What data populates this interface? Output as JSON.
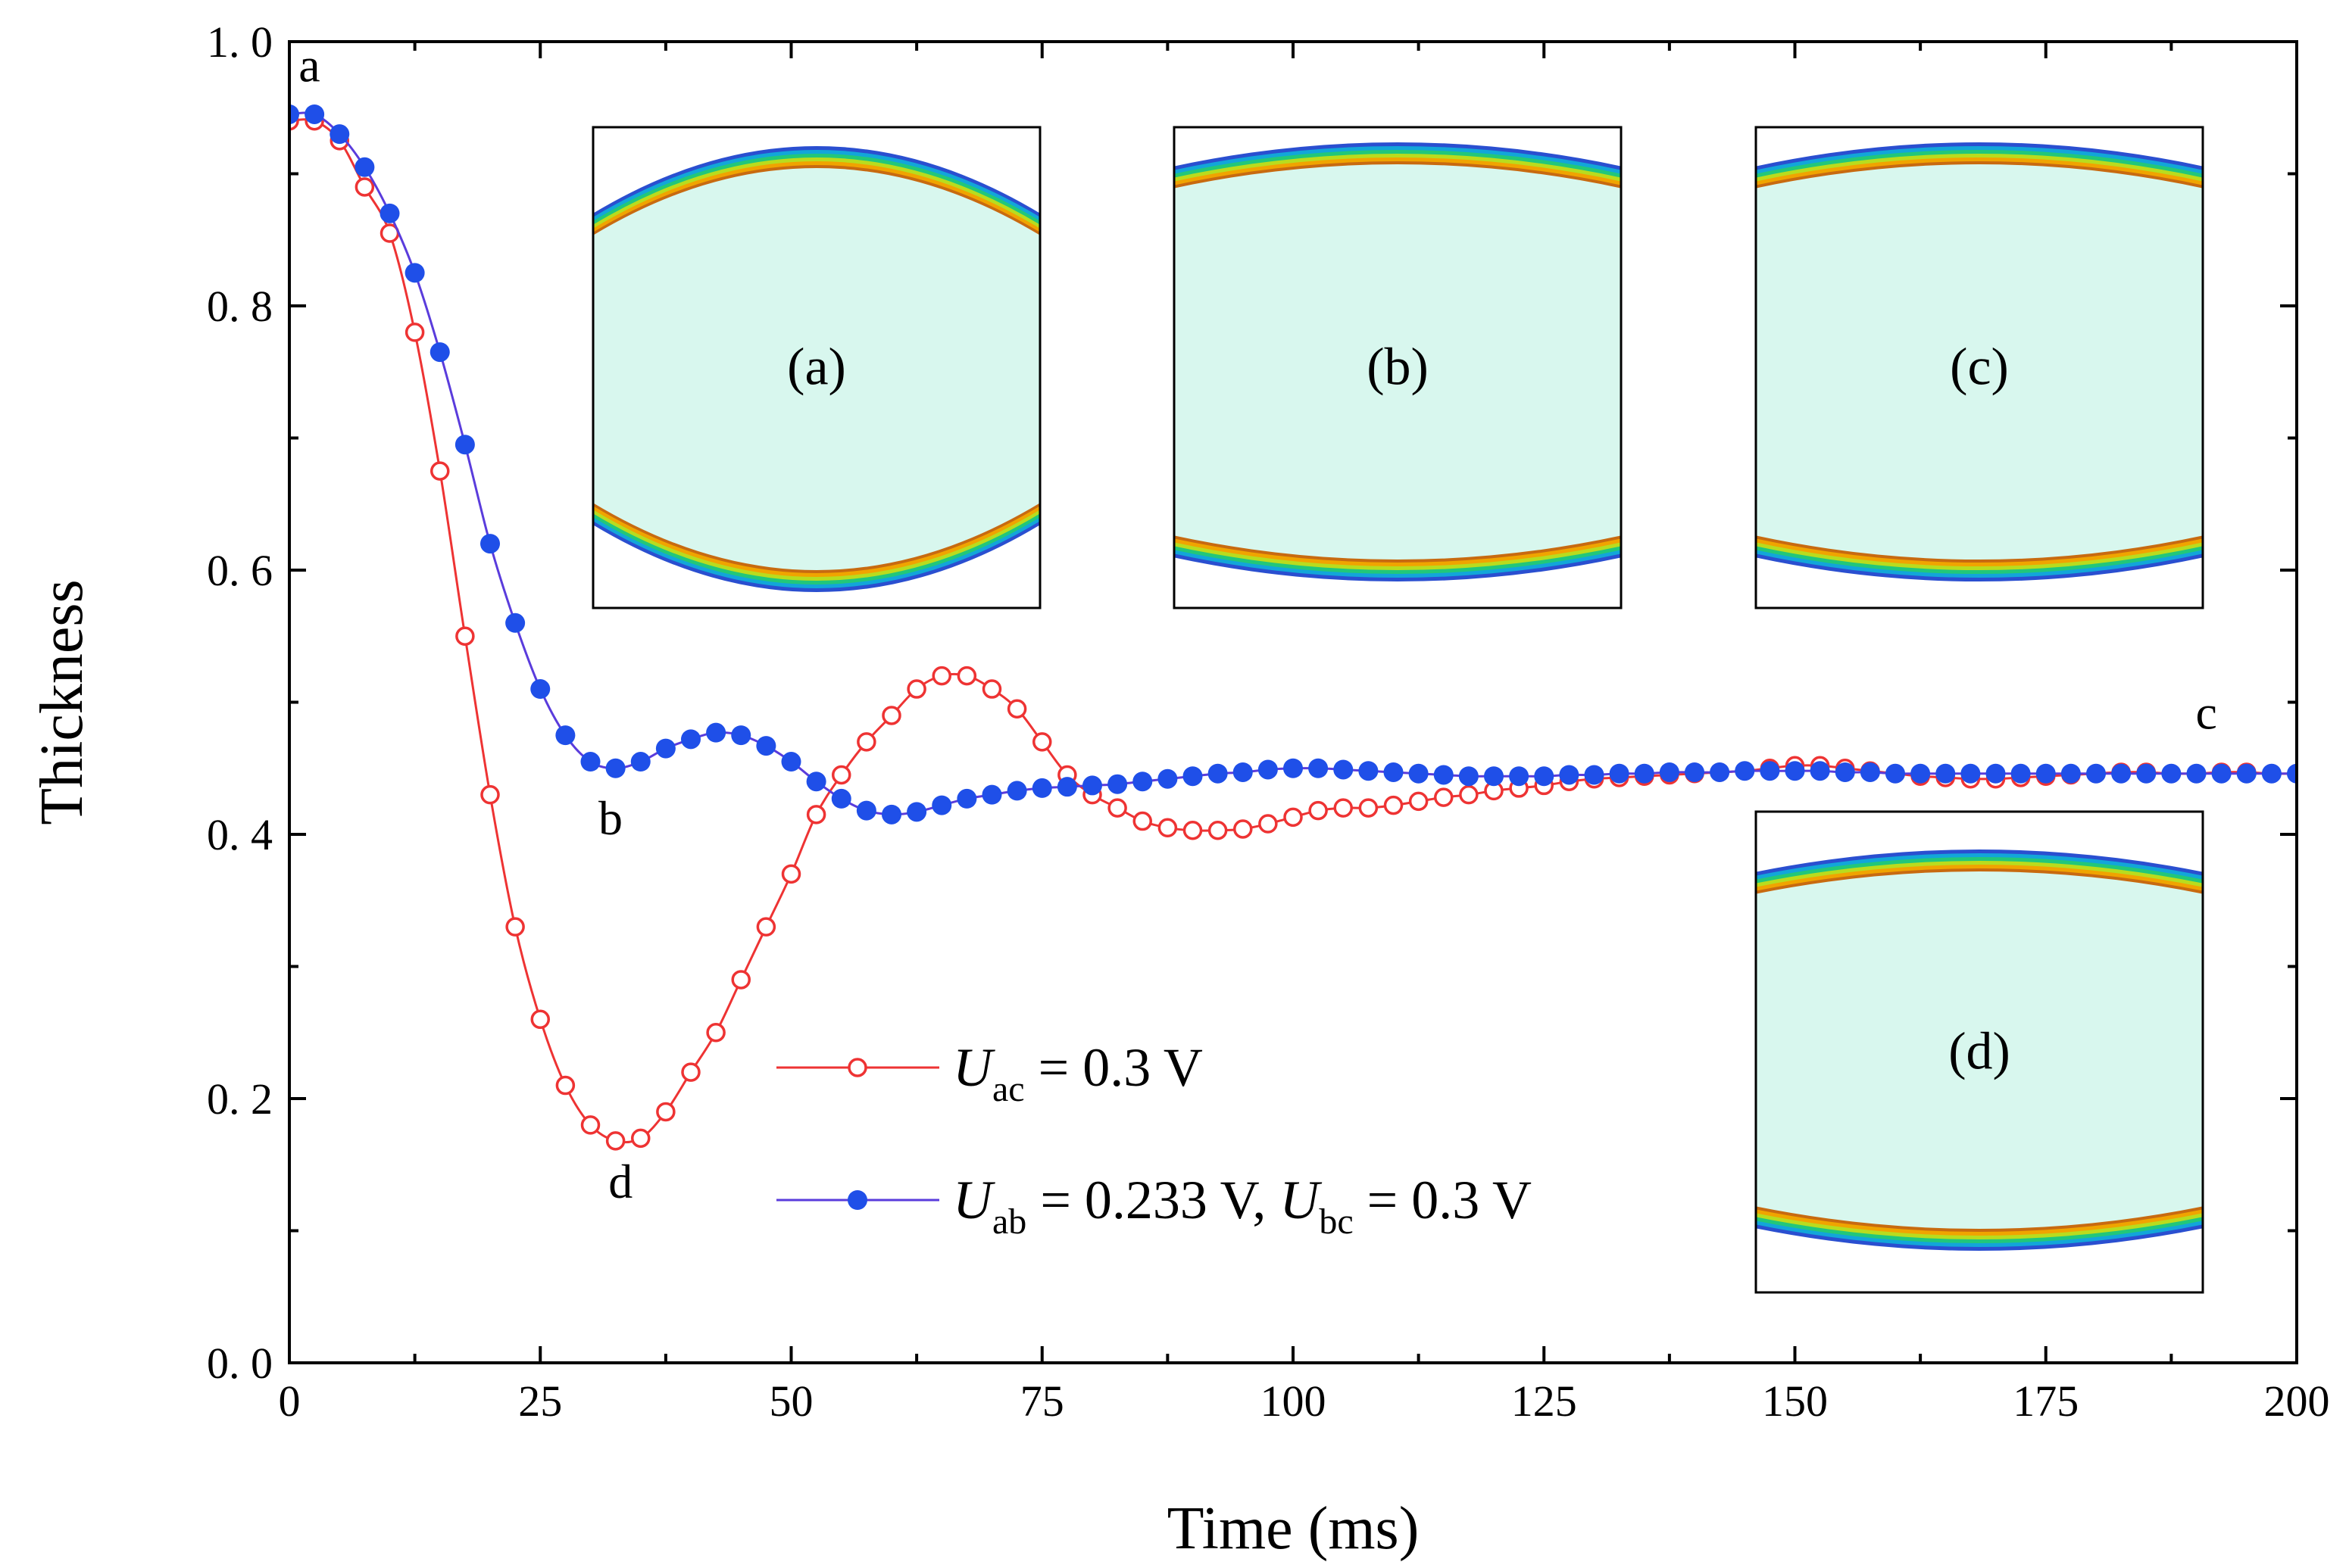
{
  "colors": {
    "series_ac": "#ee3333",
    "series_ab": "#1f4fe8",
    "series_ab_line": "#5a3cdc",
    "axis": "#000000",
    "inset_fill": "#d8f7ee"
  },
  "chart_data": {
    "type": "line",
    "xlabel": "Time (ms)",
    "ylabel": "Thickness",
    "xlim": [
      0,
      200
    ],
    "ylim": [
      0.0,
      1.0
    ],
    "x_ticks": [
      "0",
      "25",
      "50",
      "75",
      "100",
      "125",
      "150",
      "175",
      "200"
    ],
    "y_ticks": [
      "0. 0",
      "0. 2",
      "0. 4",
      "0. 6",
      "0. 8",
      "1. 0"
    ],
    "legend": {
      "placement": "center",
      "entries": [
        {
          "symbol": "U",
          "sub": "ac",
          "rest": " = 0.3 V"
        },
        {
          "symbol": "U",
          "sub": "ab",
          "rest": " = 0.233 V, ",
          "symbol2": "U",
          "sub2": "bc",
          "rest2": " = 0.3 V"
        }
      ]
    },
    "point_labels": [
      {
        "text": "a",
        "x": 2,
        "y": 0.97
      },
      {
        "text": "b",
        "x": 32,
        "y": 0.4
      },
      {
        "text": "c",
        "x": 191,
        "y": 0.48
      },
      {
        "text": "d",
        "x": 33,
        "y": 0.125
      }
    ],
    "insets": [
      {
        "label": "(a)",
        "shape": "bulged"
      },
      {
        "label": "(b)",
        "shape": "flat"
      },
      {
        "label": "(c)",
        "shape": "flat"
      },
      {
        "label": "(d)",
        "shape": "tall"
      }
    ],
    "series": [
      {
        "name": "U_ac = 0.3 V",
        "marker": "open-circle",
        "x": [
          0,
          2.5,
          5,
          7.5,
          10,
          12.5,
          15,
          17.5,
          20,
          22.5,
          25,
          27.5,
          30,
          32.5,
          35,
          37.5,
          40,
          42.5,
          45,
          47.5,
          50,
          52.5,
          55,
          57.5,
          60,
          62.5,
          65,
          67.5,
          70,
          72.5,
          75,
          77.5,
          80,
          82.5,
          85,
          87.5,
          90,
          92.5,
          95,
          97.5,
          100,
          102.5,
          105,
          107.5,
          110,
          112.5,
          115,
          117.5,
          120,
          122.5,
          125,
          127.5,
          130,
          132.5,
          135,
          137.5,
          140,
          142.5,
          145,
          147.5,
          150,
          152.5,
          155,
          157.5,
          160,
          162.5,
          165,
          167.5,
          170,
          172.5,
          175,
          177.5,
          180,
          182.5,
          185,
          187.5,
          190,
          192.5,
          195,
          197.5,
          200
        ],
        "values": [
          0.94,
          0.94,
          0.925,
          0.89,
          0.855,
          0.78,
          0.675,
          0.55,
          0.43,
          0.33,
          0.26,
          0.21,
          0.18,
          0.168,
          0.17,
          0.19,
          0.22,
          0.25,
          0.29,
          0.33,
          0.37,
          0.415,
          0.445,
          0.47,
          0.49,
          0.51,
          0.52,
          0.52,
          0.51,
          0.495,
          0.47,
          0.445,
          0.43,
          0.42,
          0.41,
          0.405,
          0.403,
          0.403,
          0.404,
          0.408,
          0.413,
          0.418,
          0.42,
          0.42,
          0.422,
          0.425,
          0.428,
          0.43,
          0.433,
          0.435,
          0.437,
          0.44,
          0.442,
          0.443,
          0.444,
          0.445,
          0.446,
          0.447,
          0.448,
          0.45,
          0.452,
          0.452,
          0.45,
          0.448,
          0.446,
          0.444,
          0.443,
          0.442,
          0.442,
          0.443,
          0.444,
          0.445,
          0.446,
          0.447,
          0.447,
          0.446,
          0.446,
          0.447,
          0.447,
          0.446,
          0.446
        ]
      },
      {
        "name": "U_ab = 0.233 V, U_bc = 0.3 V",
        "marker": "filled-circle",
        "x": [
          0,
          2.5,
          5,
          7.5,
          10,
          12.5,
          15,
          17.5,
          20,
          22.5,
          25,
          27.5,
          30,
          32.5,
          35,
          37.5,
          40,
          42.5,
          45,
          47.5,
          50,
          52.5,
          55,
          57.5,
          60,
          62.5,
          65,
          67.5,
          70,
          72.5,
          75,
          77.5,
          80,
          82.5,
          85,
          87.5,
          90,
          92.5,
          95,
          97.5,
          100,
          102.5,
          105,
          107.5,
          110,
          112.5,
          115,
          117.5,
          120,
          122.5,
          125,
          127.5,
          130,
          132.5,
          135,
          137.5,
          140,
          142.5,
          145,
          147.5,
          150,
          152.5,
          155,
          157.5,
          160,
          162.5,
          165,
          167.5,
          170,
          172.5,
          175,
          177.5,
          180,
          182.5,
          185,
          187.5,
          190,
          192.5,
          195,
          197.5,
          200
        ],
        "values": [
          0.945,
          0.945,
          0.93,
          0.905,
          0.87,
          0.825,
          0.765,
          0.695,
          0.62,
          0.56,
          0.51,
          0.475,
          0.455,
          0.45,
          0.455,
          0.465,
          0.472,
          0.477,
          0.475,
          0.467,
          0.455,
          0.44,
          0.427,
          0.418,
          0.415,
          0.417,
          0.422,
          0.427,
          0.43,
          0.433,
          0.435,
          0.436,
          0.437,
          0.438,
          0.44,
          0.442,
          0.444,
          0.446,
          0.447,
          0.449,
          0.45,
          0.45,
          0.449,
          0.448,
          0.447,
          0.446,
          0.445,
          0.444,
          0.444,
          0.444,
          0.444,
          0.445,
          0.445,
          0.446,
          0.446,
          0.447,
          0.447,
          0.447,
          0.448,
          0.448,
          0.448,
          0.448,
          0.447,
          0.447,
          0.446,
          0.446,
          0.446,
          0.446,
          0.446,
          0.446,
          0.446,
          0.446,
          0.446,
          0.446,
          0.446,
          0.446,
          0.446,
          0.446,
          0.446,
          0.446,
          0.446
        ]
      }
    ]
  }
}
